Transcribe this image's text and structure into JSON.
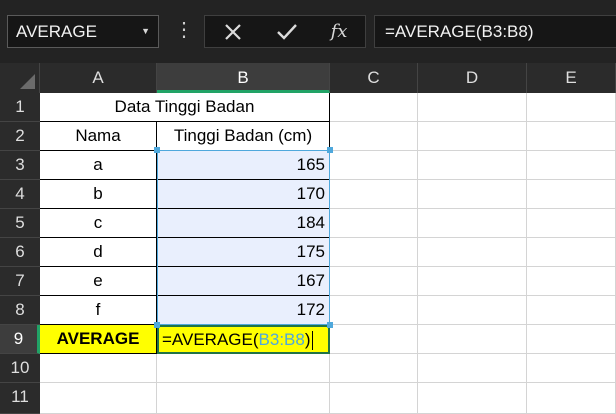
{
  "name_box": {
    "value": "AVERAGE"
  },
  "formula_bar": {
    "value": "=AVERAGE(B3:B8)"
  },
  "columns": [
    "A",
    "B",
    "C",
    "D",
    "E"
  ],
  "rows": [
    "1",
    "2",
    "3",
    "4",
    "5",
    "6",
    "7",
    "8",
    "9",
    "10",
    "11"
  ],
  "sheet": {
    "title": "Data Tinggi Badan",
    "header_name": "Nama",
    "header_height": "Tinggi Badan (cm)",
    "data": [
      {
        "name": "a",
        "height": "165"
      },
      {
        "name": "b",
        "height": "170"
      },
      {
        "name": "c",
        "height": "184"
      },
      {
        "name": "d",
        "height": "175"
      },
      {
        "name": "e",
        "height": "167"
      },
      {
        "name": "f",
        "height": "172"
      }
    ],
    "average_label": "AVERAGE",
    "editing_prefix": "=AVERAGE(",
    "editing_ref": "B3:B8",
    "editing_suffix": ")"
  },
  "colors": {
    "accent": "#21a366",
    "range_ref": "#4fa8dc",
    "highlight": "#ffff00"
  }
}
